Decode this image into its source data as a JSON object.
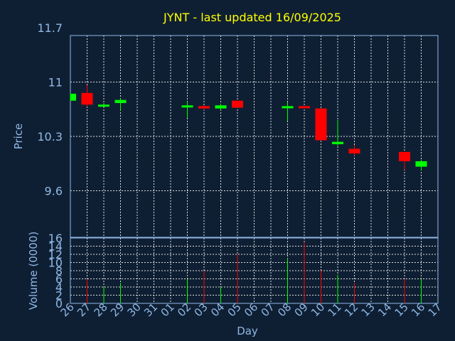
{
  "chart_data": {
    "type": "candlestick",
    "title": "JYNT - last updated 16/09/2025",
    "price_panel": {
      "ylabel": "Price",
      "ylim": [
        9.0,
        11.6
      ],
      "yticks": [
        9.6,
        10.3,
        11.0,
        11.7
      ],
      "ytick_labels": [
        "9.6",
        "10.3",
        "11",
        "11.7"
      ]
    },
    "volume_panel": {
      "ylabel": "Volume (0000)",
      "ylim": [
        0,
        16
      ],
      "yticks": [
        0,
        2,
        4,
        6,
        8,
        10,
        12,
        14,
        16
      ],
      "ytick_labels": [
        "0",
        "2",
        "4",
        "6",
        "8",
        "10",
        "12",
        "14",
        "16"
      ]
    },
    "xlabel": "Day",
    "x_tick_labels": [
      "26",
      "27",
      "28",
      "29",
      "30",
      "31",
      "01",
      "02",
      "03",
      "04",
      "05",
      "06",
      "07",
      "08",
      "09",
      "10",
      "11",
      "12",
      "13",
      "14",
      "15",
      "16",
      "17"
    ],
    "grid": true,
    "up_color": "#00ff00",
    "down_color": "#ff0000",
    "candles": [
      {
        "day": "26",
        "open": 10.76,
        "close": 10.85,
        "high": 10.85,
        "low": 10.76,
        "volume": 0
      },
      {
        "day": "27",
        "open": 10.86,
        "close": 10.71,
        "high": 10.96,
        "low": 10.68,
        "volume": 6
      },
      {
        "day": "28",
        "open": 10.69,
        "close": 10.71,
        "high": 10.73,
        "low": 10.69,
        "volume": 4
      },
      {
        "day": "29",
        "open": 10.73,
        "close": 10.77,
        "high": 10.79,
        "low": 10.64,
        "volume": 5
      },
      {
        "day": "02",
        "open": 10.68,
        "close": 10.7,
        "high": 10.75,
        "low": 10.54,
        "volume": 6
      },
      {
        "day": "03",
        "open": 10.69,
        "close": 10.66,
        "high": 10.7,
        "low": 10.64,
        "volume": 8
      },
      {
        "day": "04",
        "open": 10.66,
        "close": 10.7,
        "high": 10.72,
        "low": 10.64,
        "volume": 4
      },
      {
        "day": "05",
        "open": 10.76,
        "close": 10.67,
        "high": 10.77,
        "low": 10.67,
        "volume": 12
      },
      {
        "day": "08",
        "open": 10.67,
        "close": 10.69,
        "high": 10.74,
        "low": 10.5,
        "volume": 11
      },
      {
        "day": "09",
        "open": 10.69,
        "close": 10.67,
        "high": 10.69,
        "low": 10.67,
        "volume": 15
      },
      {
        "day": "10",
        "open": 10.66,
        "close": 10.25,
        "high": 10.66,
        "low": 10.25,
        "volume": 8
      },
      {
        "day": "11",
        "open": 10.2,
        "close": 10.23,
        "high": 10.51,
        "low": 10.18,
        "volume": 7
      },
      {
        "day": "12",
        "open": 10.14,
        "close": 10.08,
        "high": 10.19,
        "low": 10.05,
        "volume": 5
      },
      {
        "day": "15",
        "open": 10.1,
        "close": 9.98,
        "high": 10.1,
        "low": 9.87,
        "volume": 6
      },
      {
        "day": "16",
        "open": 9.91,
        "close": 9.98,
        "high": 10.0,
        "low": 9.86,
        "volume": 6
      }
    ]
  }
}
